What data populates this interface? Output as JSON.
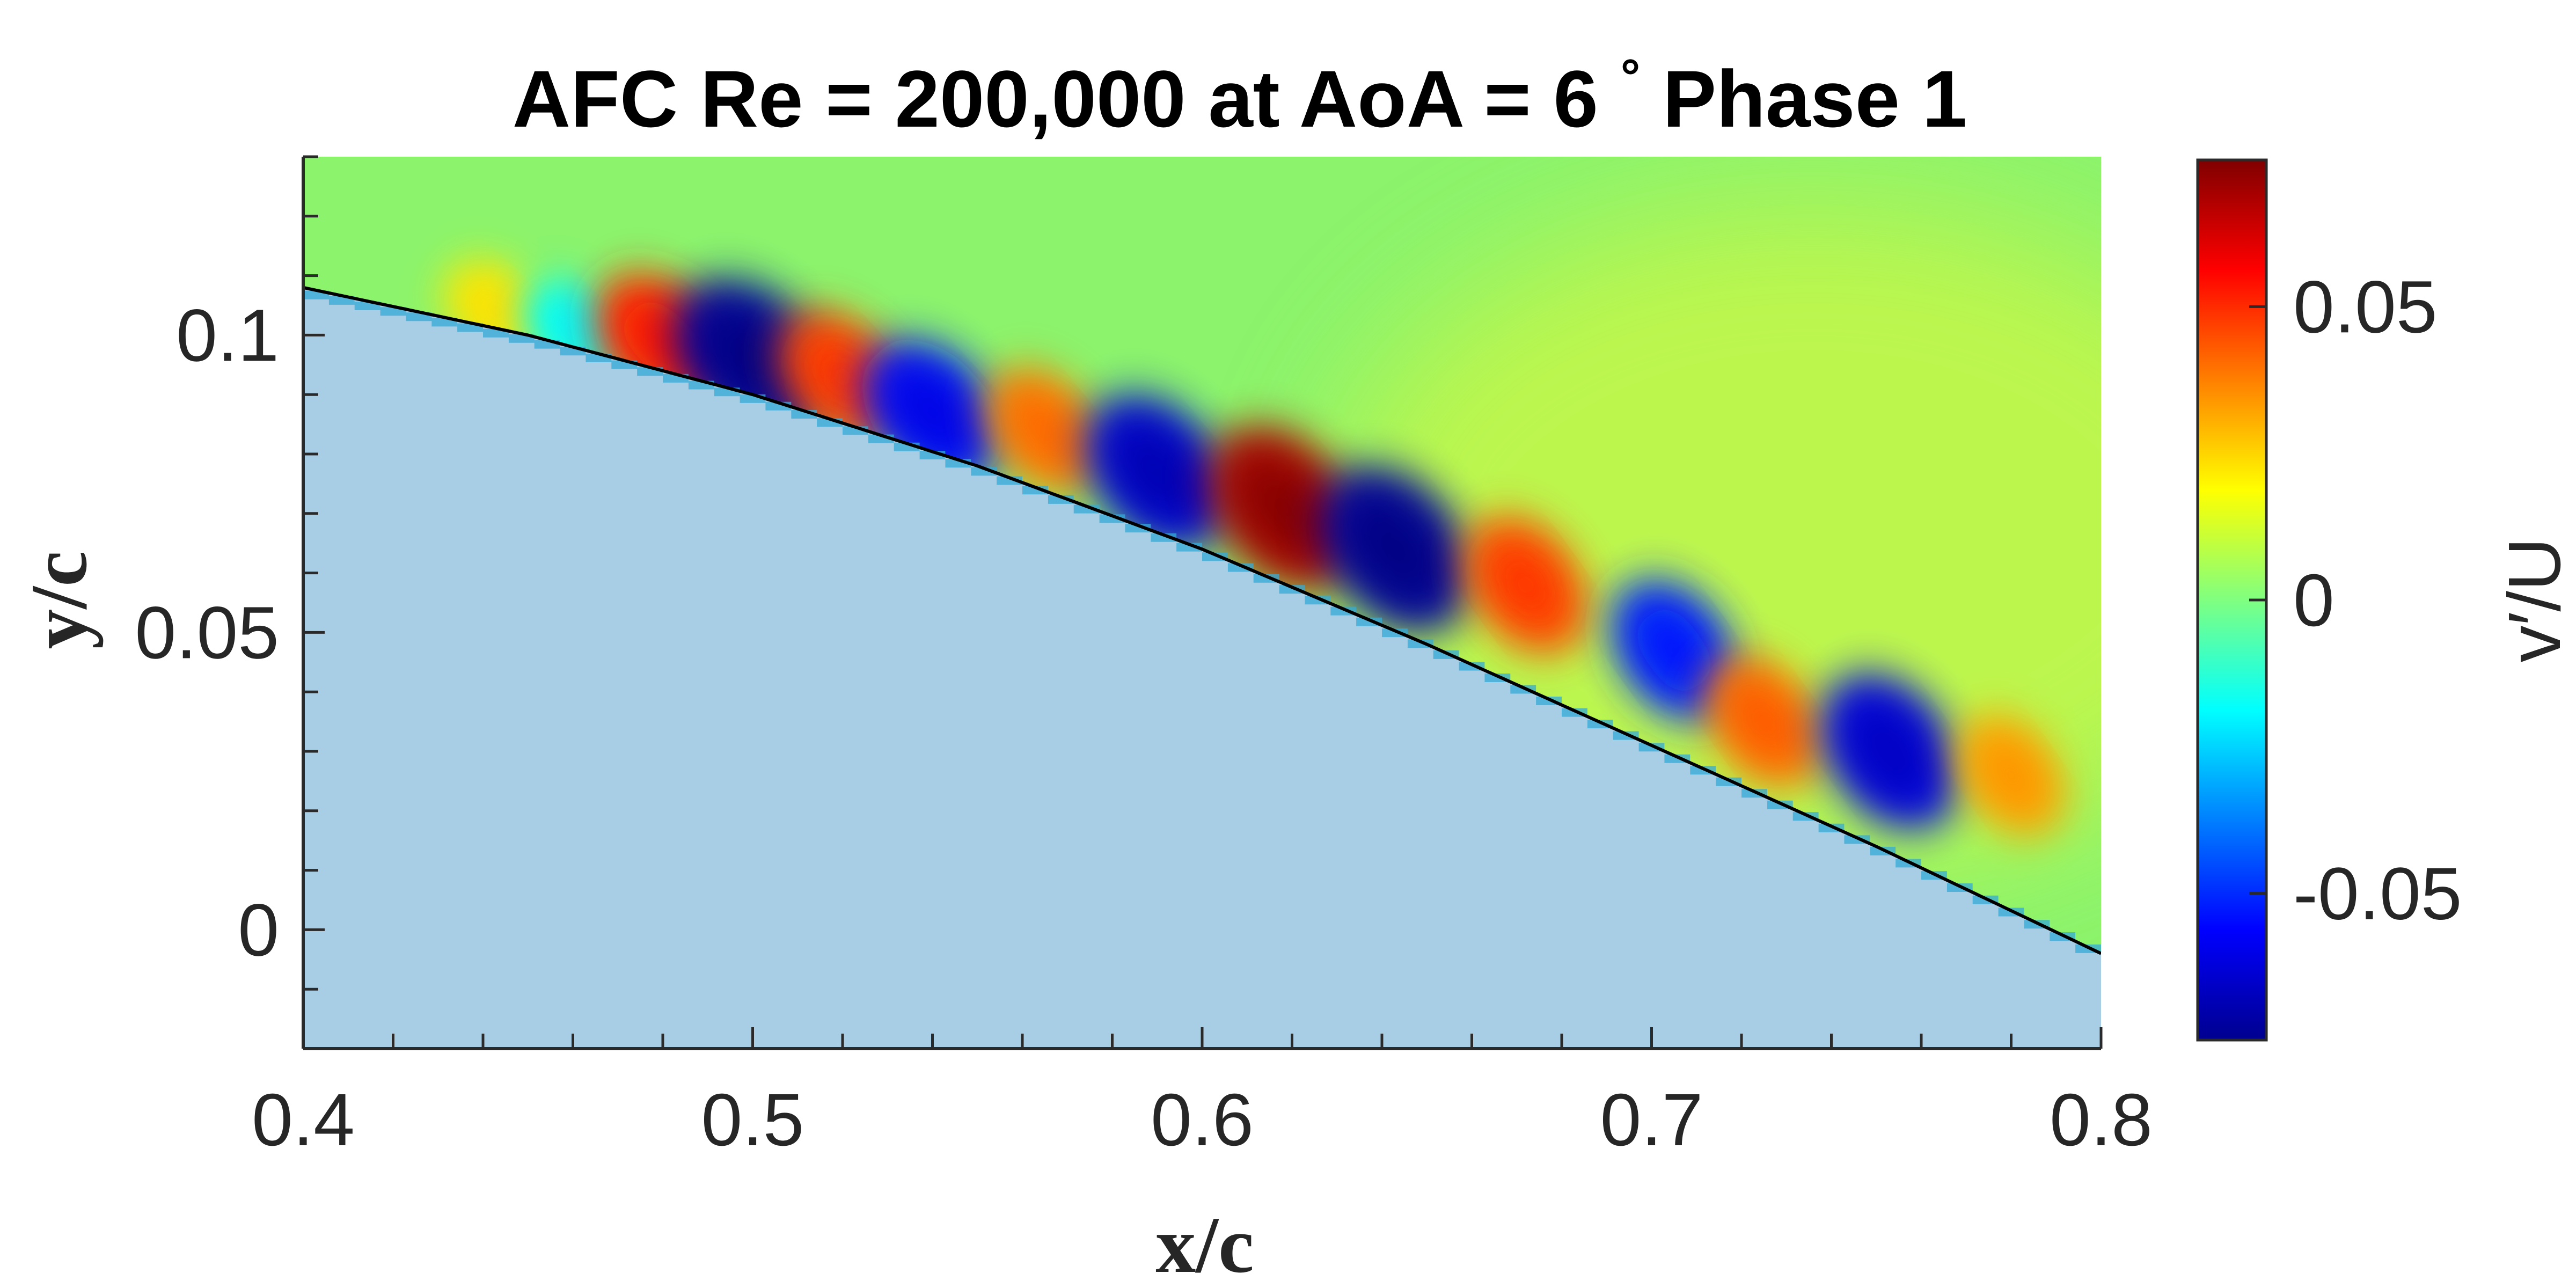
{
  "chart_data": {
    "type": "heatmap",
    "title": "AFC Re = 200,000 at AoA = 6",
    "title_degree": "°",
    "title_suffix": " Phase 1",
    "xlabel": "x/c",
    "ylabel": "y/c",
    "colorbar_label": "v′/U",
    "xlim": [
      0.4,
      0.8
    ],
    "ylim": [
      -0.02,
      0.13
    ],
    "clim": [
      -0.075,
      0.075
    ],
    "xticks": [
      {
        "value": 0.4,
        "label": "0.4"
      },
      {
        "value": 0.5,
        "label": "0.5"
      },
      {
        "value": 0.6,
        "label": "0.6"
      },
      {
        "value": 0.7,
        "label": "0.7"
      },
      {
        "value": 0.8,
        "label": "0.8"
      }
    ],
    "yticks": [
      {
        "value": 0.0,
        "label": "0"
      },
      {
        "value": 0.05,
        "label": "0.05"
      },
      {
        "value": 0.1,
        "label": "0.1"
      }
    ],
    "colorbar_ticks": [
      {
        "value": 0.05,
        "label": "0.05"
      },
      {
        "value": 0.0,
        "label": "0"
      },
      {
        "value": -0.05,
        "label": "-0.05"
      }
    ],
    "colormap": "jet",
    "field_background": "#8BF36C",
    "airfoil_fill": "#A8CEE6",
    "surface_line_color": "#000000",
    "surface": {
      "x": [
        0.4,
        0.45,
        0.5,
        0.55,
        0.6,
        0.65,
        0.7,
        0.75,
        0.8
      ],
      "y": [
        0.108,
        0.1,
        0.09,
        0.078,
        0.064,
        0.048,
        0.031,
        0.014,
        -0.004
      ]
    },
    "structures": [
      {
        "x": 0.443,
        "y": 0.104,
        "v": 0.022
      },
      {
        "x": 0.46,
        "y": 0.101,
        "v": -0.018
      },
      {
        "x": 0.48,
        "y": 0.099,
        "v": 0.05
      },
      {
        "x": 0.5,
        "y": 0.096,
        "v": -0.07
      },
      {
        "x": 0.52,
        "y": 0.093,
        "v": 0.045
      },
      {
        "x": 0.54,
        "y": 0.087,
        "v": -0.055
      },
      {
        "x": 0.565,
        "y": 0.084,
        "v": 0.038
      },
      {
        "x": 0.59,
        "y": 0.077,
        "v": -0.062
      },
      {
        "x": 0.618,
        "y": 0.071,
        "v": 0.068
      },
      {
        "x": 0.643,
        "y": 0.064,
        "v": -0.07
      },
      {
        "x": 0.672,
        "y": 0.058,
        "v": 0.045
      },
      {
        "x": 0.705,
        "y": 0.047,
        "v": -0.05
      },
      {
        "x": 0.725,
        "y": 0.035,
        "v": 0.04
      },
      {
        "x": 0.753,
        "y": 0.03,
        "v": -0.06
      },
      {
        "x": 0.78,
        "y": 0.026,
        "v": 0.032
      }
    ]
  }
}
